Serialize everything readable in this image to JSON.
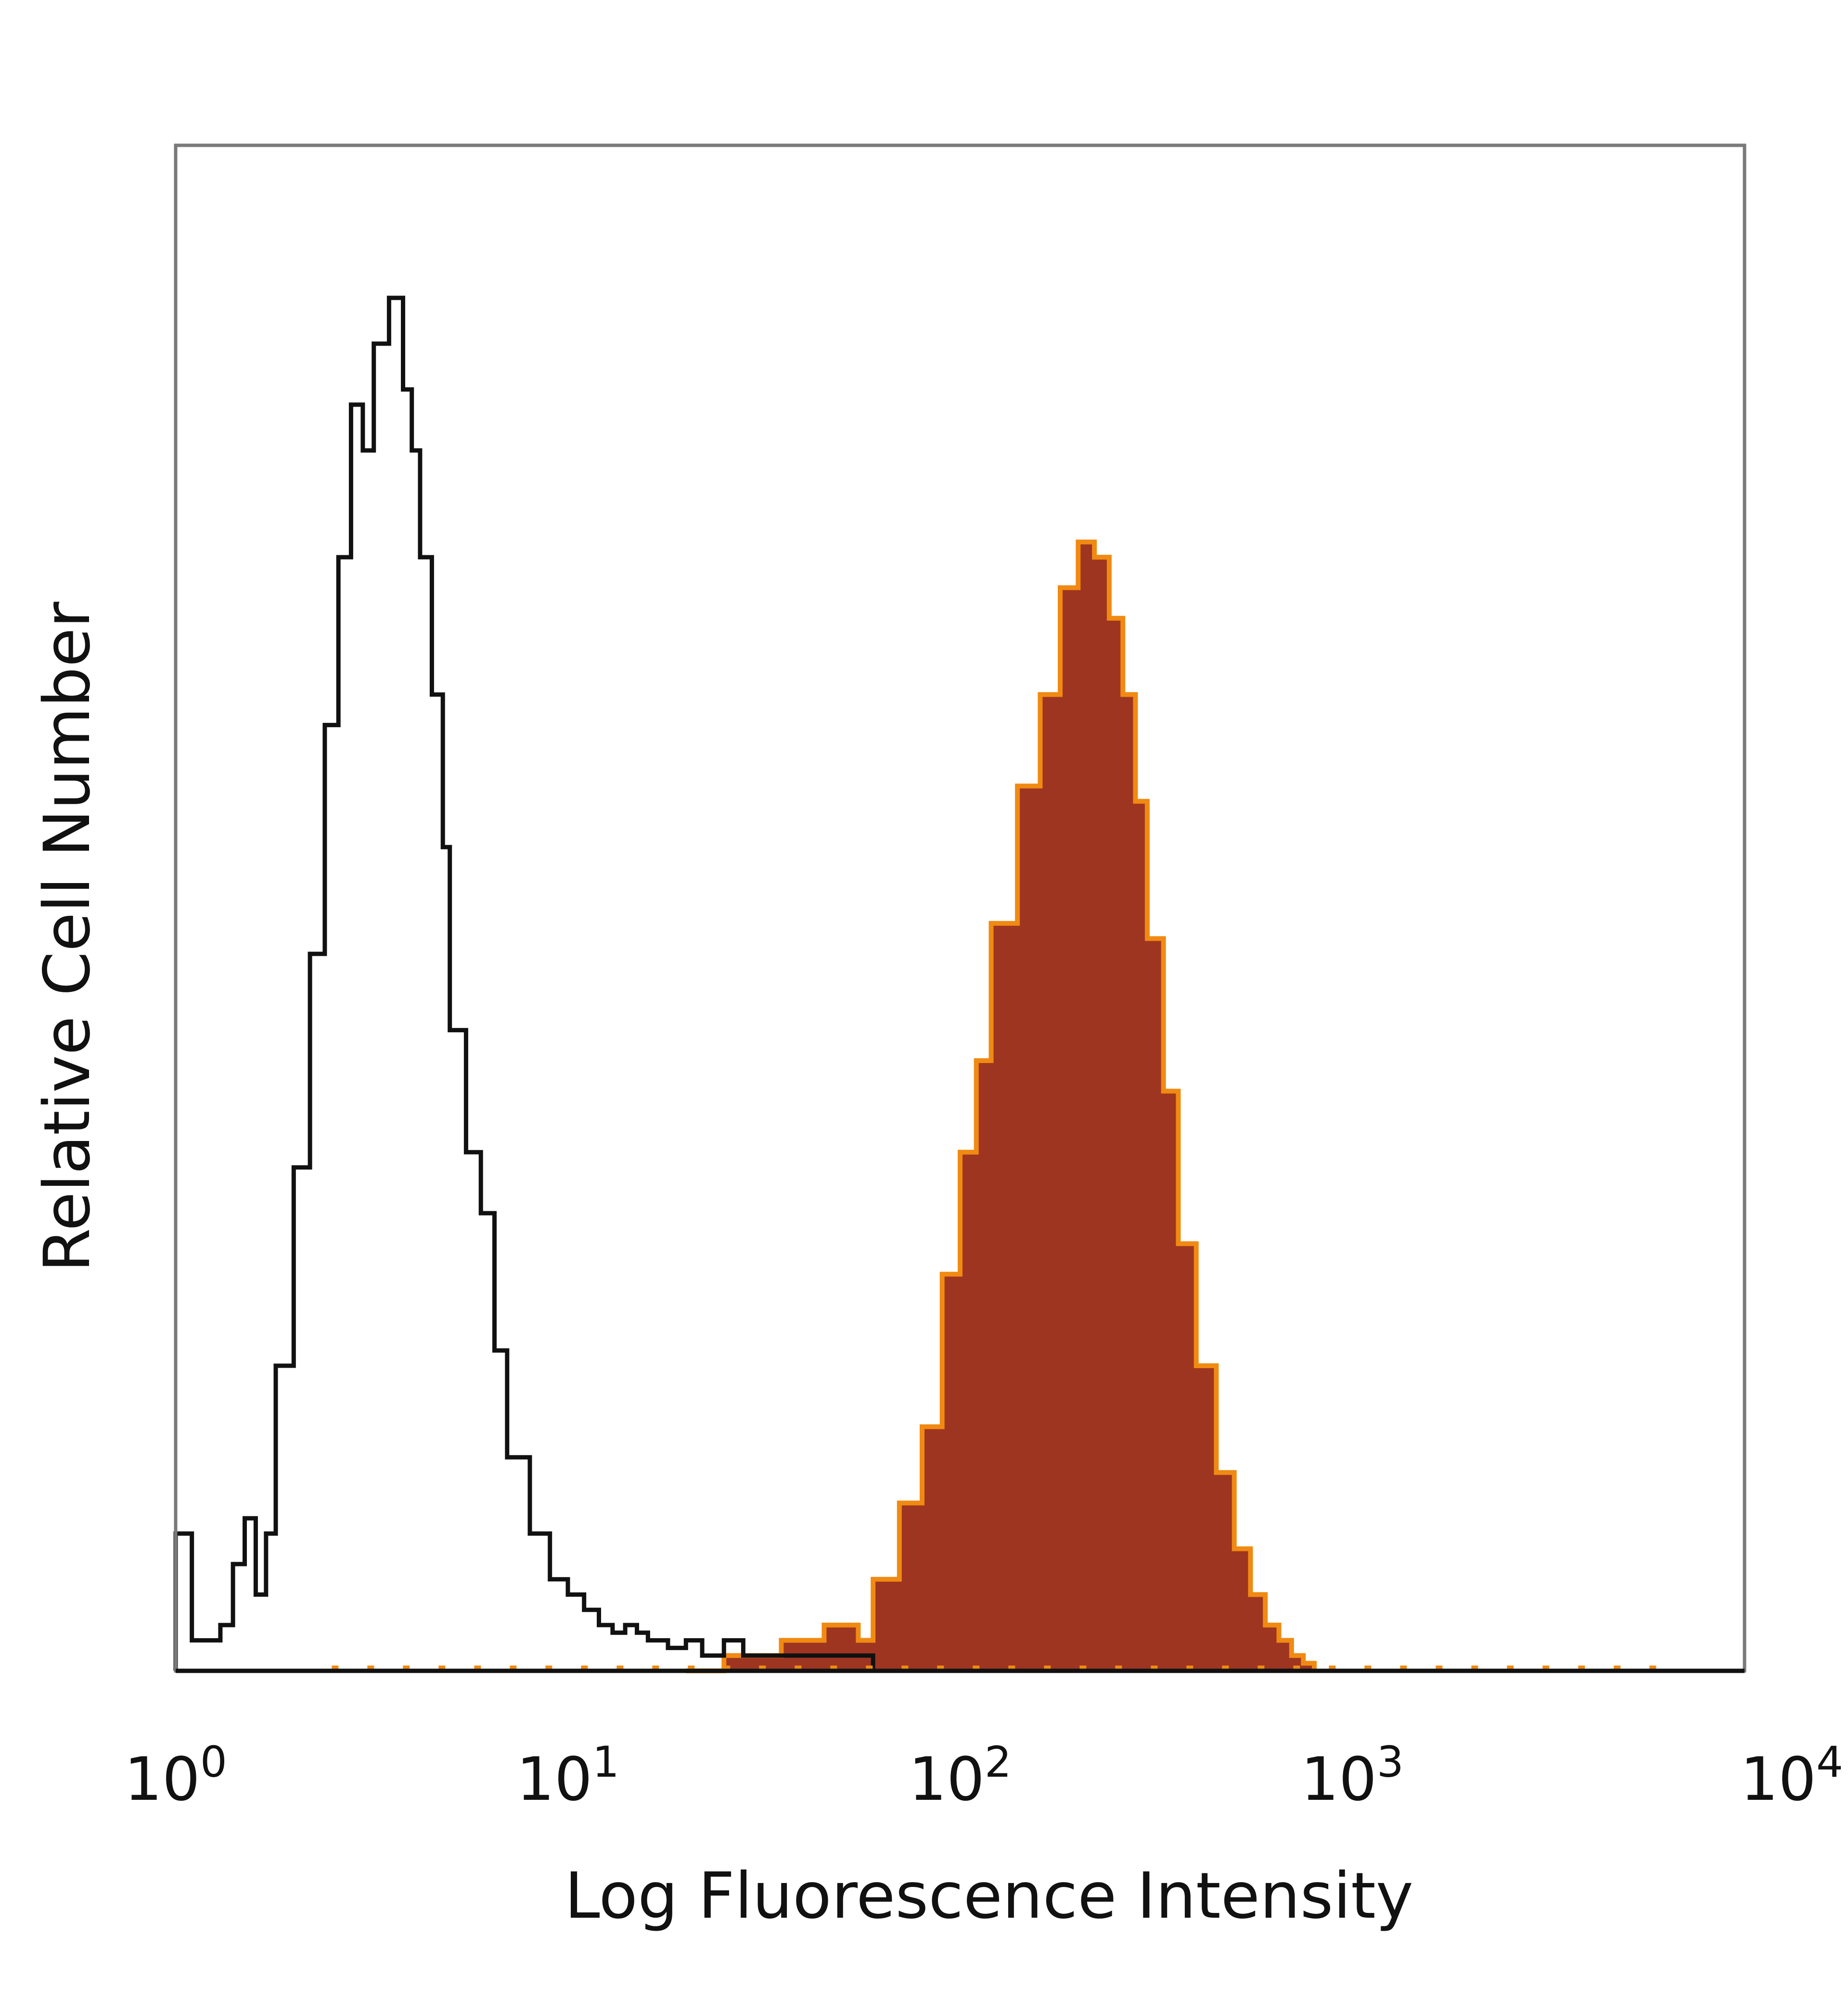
{
  "chart_data": {
    "type": "area",
    "title": "",
    "xlabel": "Log Fluorescence Intensity",
    "ylabel": "Relative Cell Number",
    "x_scale": "log",
    "xlim": [
      1,
      10000
    ],
    "ylim": [
      0,
      100
    ],
    "grid": false,
    "legend": "none",
    "x_ticks": [
      {
        "base": "10",
        "exp": "0",
        "value": 1
      },
      {
        "base": "10",
        "exp": "1",
        "value": 10
      },
      {
        "base": "10",
        "exp": "2",
        "value": 100
      },
      {
        "base": "10",
        "exp": "3",
        "value": 1000
      },
      {
        "base": "10",
        "exp": "4",
        "value": 10000
      }
    ],
    "series": [
      {
        "style": "outline",
        "color": "#111111",
        "x": [
          1.0,
          1.1,
          1.2,
          1.3,
          1.4,
          1.5,
          1.6,
          1.7,
          1.8,
          2.0,
          2.2,
          2.4,
          2.6,
          2.8,
          3.0,
          3.2,
          3.5,
          3.8,
          4.0,
          4.2,
          4.5,
          4.8,
          5.0,
          5.5,
          6.0,
          6.5,
          7.0,
          8.0,
          9.0,
          10,
          11,
          12,
          13,
          14,
          15,
          16,
          18,
          20,
          22,
          25,
          28,
          32,
          36,
          40,
          45,
          50,
          56,
          60
        ],
        "y": [
          9,
          2,
          2,
          3,
          7,
          10,
          5,
          9,
          20,
          33,
          47,
          62,
          73,
          83,
          80,
          87,
          90,
          84,
          80,
          73,
          64,
          54,
          42,
          34,
          30,
          21,
          14,
          9,
          6,
          5,
          4,
          3,
          2.5,
          3,
          2.5,
          2,
          1.5,
          2,
          1,
          2,
          1,
          1,
          1,
          1,
          1,
          1,
          1,
          0
        ]
      },
      {
        "style": "filled",
        "fill": "#9e3521",
        "edge": "#f08a12",
        "x": [
          20,
          25,
          30,
          35,
          40,
          45,
          50,
          55,
          60,
          65,
          70,
          80,
          90,
          100,
          110,
          120,
          140,
          160,
          180,
          200,
          220,
          240,
          260,
          280,
          300,
          330,
          360,
          400,
          450,
          500,
          550,
          600,
          650,
          700,
          750,
          800
        ],
        "y": [
          0,
          1,
          1,
          2,
          2,
          3,
          3,
          2,
          6,
          6,
          11,
          16,
          26,
          34,
          40,
          49,
          58,
          64,
          71,
          74,
          73,
          69,
          64,
          57,
          48,
          38,
          28,
          20,
          13,
          8,
          5,
          3,
          2,
          1,
          0.5,
          0
        ]
      }
    ]
  }
}
